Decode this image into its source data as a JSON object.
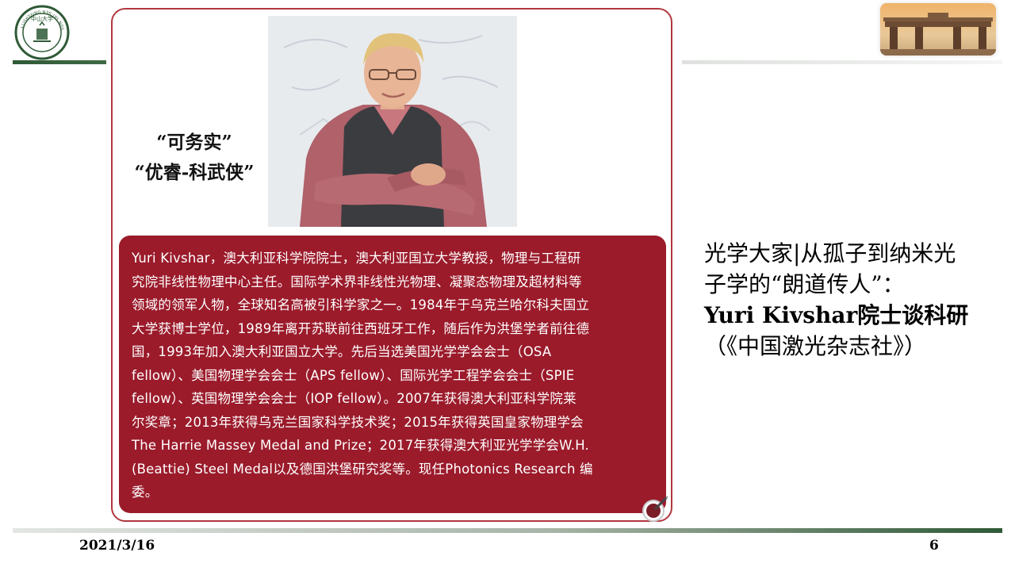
{
  "header": {
    "logo_icon": "sysu-emblem-icon",
    "logo_ring_text": "SUN YAT-SEN UNIVERSITY",
    "logo_top_text": "中山大学",
    "gate_icon": "university-gate-photo",
    "accent_color": "#2f5a36"
  },
  "card": {
    "quote_line1": "“可务实”",
    "quote_line2": "“优睿-科武侠”",
    "photo_icon": "portrait-photo",
    "bio_color": "#9b1b2b",
    "bio_lines": [
      "Yuri Kivshar，澳大利亚科学院院士，澳大利亚国立大学教授，物理与工程研",
      "究院非线性物理中心主任。国际学术界非线性光物理、凝聚态物理及超材料等",
      "领域的领军人物，全球知名高被引科学家之一。1984年于乌克兰哈尔科夫国立",
      "大学获博士学位，1989年离开苏联前往西班牙工作，随后作为洪堡学者前往德",
      "国，1993年加入澳大利亚国立大学。先后当选美国光学学会会士（OSA",
      "fellow）、美国物理学会会士（APS fellow）、国际光学工程学会会士（SPIE",
      "fellow）、英国物理学会会士（IOP fellow）。2007年获得澳大利亚科学院莱",
      "尔奖章；2013年获得乌克兰国家科学技术奖；2015年获得英国皇家物理学会",
      "The Harrie Massey Medal and Prize；2017年获得澳大利亚光学学会W.H.",
      "(Beattie) Steel Medal以及德国洪堡研究奖等。现任Photonics Research 编",
      "委。"
    ],
    "pen_icon": "pen-badge-icon"
  },
  "title": {
    "line1": "光学大家|从孤子到纳米光",
    "line2": "子学的“朗道传人”：",
    "line3": "Yuri Kivshar院士谈科研",
    "line4": "（《中国激光杂志社》）"
  },
  "footer": {
    "date": "2021/3/16",
    "page_number": "6"
  }
}
